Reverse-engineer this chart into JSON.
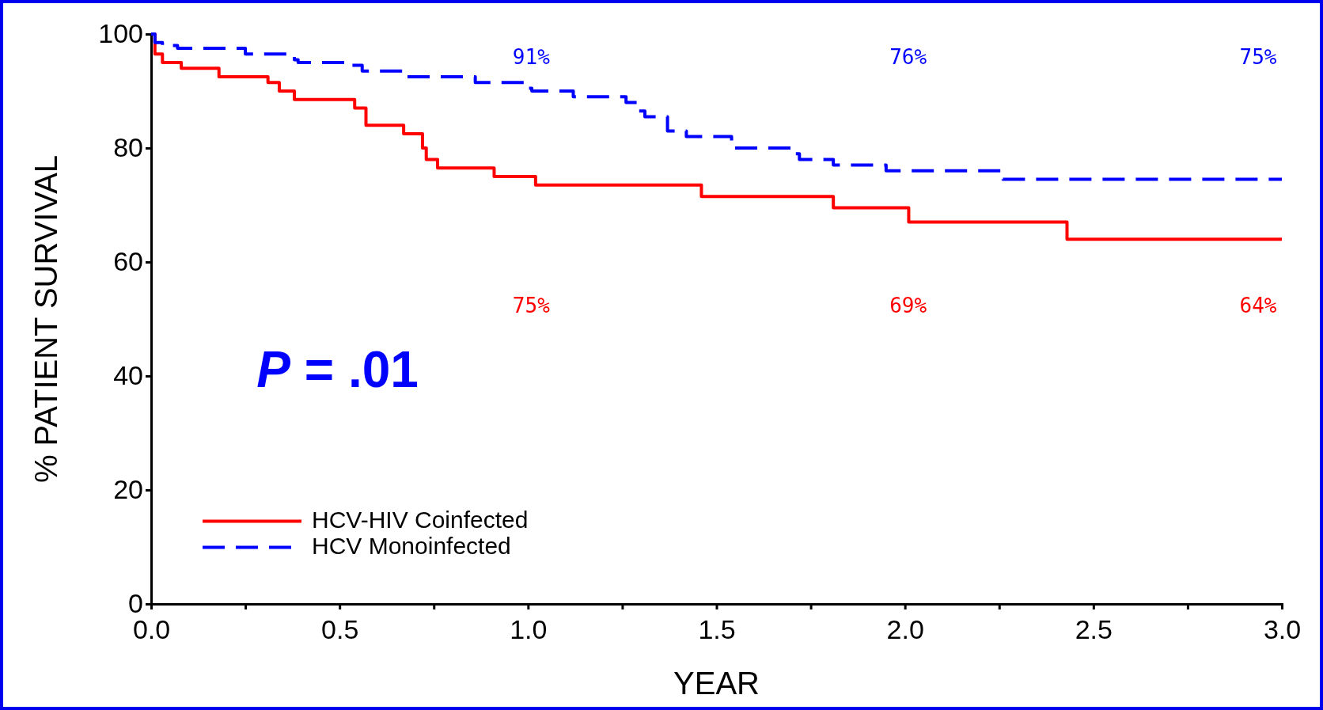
{
  "chart_data": {
    "type": "step",
    "xlabel": "YEAR",
    "ylabel": "% PATIENT SURVIVAL",
    "xlim": [
      0,
      3
    ],
    "ylim": [
      0,
      100
    ],
    "xticks": [
      {
        "value": 0,
        "label": "0.0"
      },
      {
        "value": 0.25,
        "label": null
      },
      {
        "value": 0.5,
        "label": "0.5"
      },
      {
        "value": 0.75,
        "label": null
      },
      {
        "value": 1,
        "label": "1.0"
      },
      {
        "value": 1.25,
        "label": null
      },
      {
        "value": 1.5,
        "label": "1.5"
      },
      {
        "value": 1.75,
        "label": null
      },
      {
        "value": 2,
        "label": "2.0"
      },
      {
        "value": 2.25,
        "label": null
      },
      {
        "value": 2.5,
        "label": "2.5"
      },
      {
        "value": 2.75,
        "label": null
      },
      {
        "value": 3,
        "label": "3.0"
      }
    ],
    "yticks": [
      0,
      20,
      40,
      60,
      80,
      100
    ],
    "legend": "bottom left",
    "series": [
      {
        "name": "HCV-HIV Coinfected",
        "color": "#ff0000",
        "line_style": "solid",
        "x": [
          0,
          0.01,
          0.03,
          0.08,
          0.18,
          0.31,
          0.34,
          0.38,
          0.54,
          0.57,
          0.67,
          0.72,
          0.73,
          0.76,
          0.91,
          1.02,
          1.46,
          1.81,
          2.01,
          2.43,
          3
        ],
        "values": [
          100,
          96.5,
          95,
          94,
          92.5,
          91.5,
          90,
          88.5,
          87,
          84,
          82.5,
          80,
          78,
          76.5,
          75,
          73.5,
          71.5,
          69.5,
          67,
          64,
          64
        ]
      },
      {
        "name": "HCV Monoinfected",
        "color": "#0000ff",
        "line_style": "dashed",
        "x": [
          0,
          0.01,
          0.03,
          0.07,
          0.25,
          0.38,
          0.39,
          0.53,
          0.56,
          0.67,
          0.86,
          0.99,
          1.01,
          1.12,
          1.26,
          1.29,
          1.31,
          1.37,
          1.42,
          1.54,
          1.7,
          1.72,
          1.81,
          1.95,
          2.26,
          3
        ],
        "values": [
          100,
          98.5,
          98,
          97.5,
          96.5,
          95.5,
          95,
          94.5,
          93.5,
          92.5,
          91.5,
          90.5,
          90,
          89,
          88,
          86.5,
          85.5,
          83,
          82,
          80,
          79,
          78,
          77,
          76,
          74.5,
          74.5
        ]
      }
    ],
    "annotations": [
      "91%",
      "76%",
      "75%",
      "75%",
      "69%",
      "64%",
      "P = .01"
    ]
  }
}
